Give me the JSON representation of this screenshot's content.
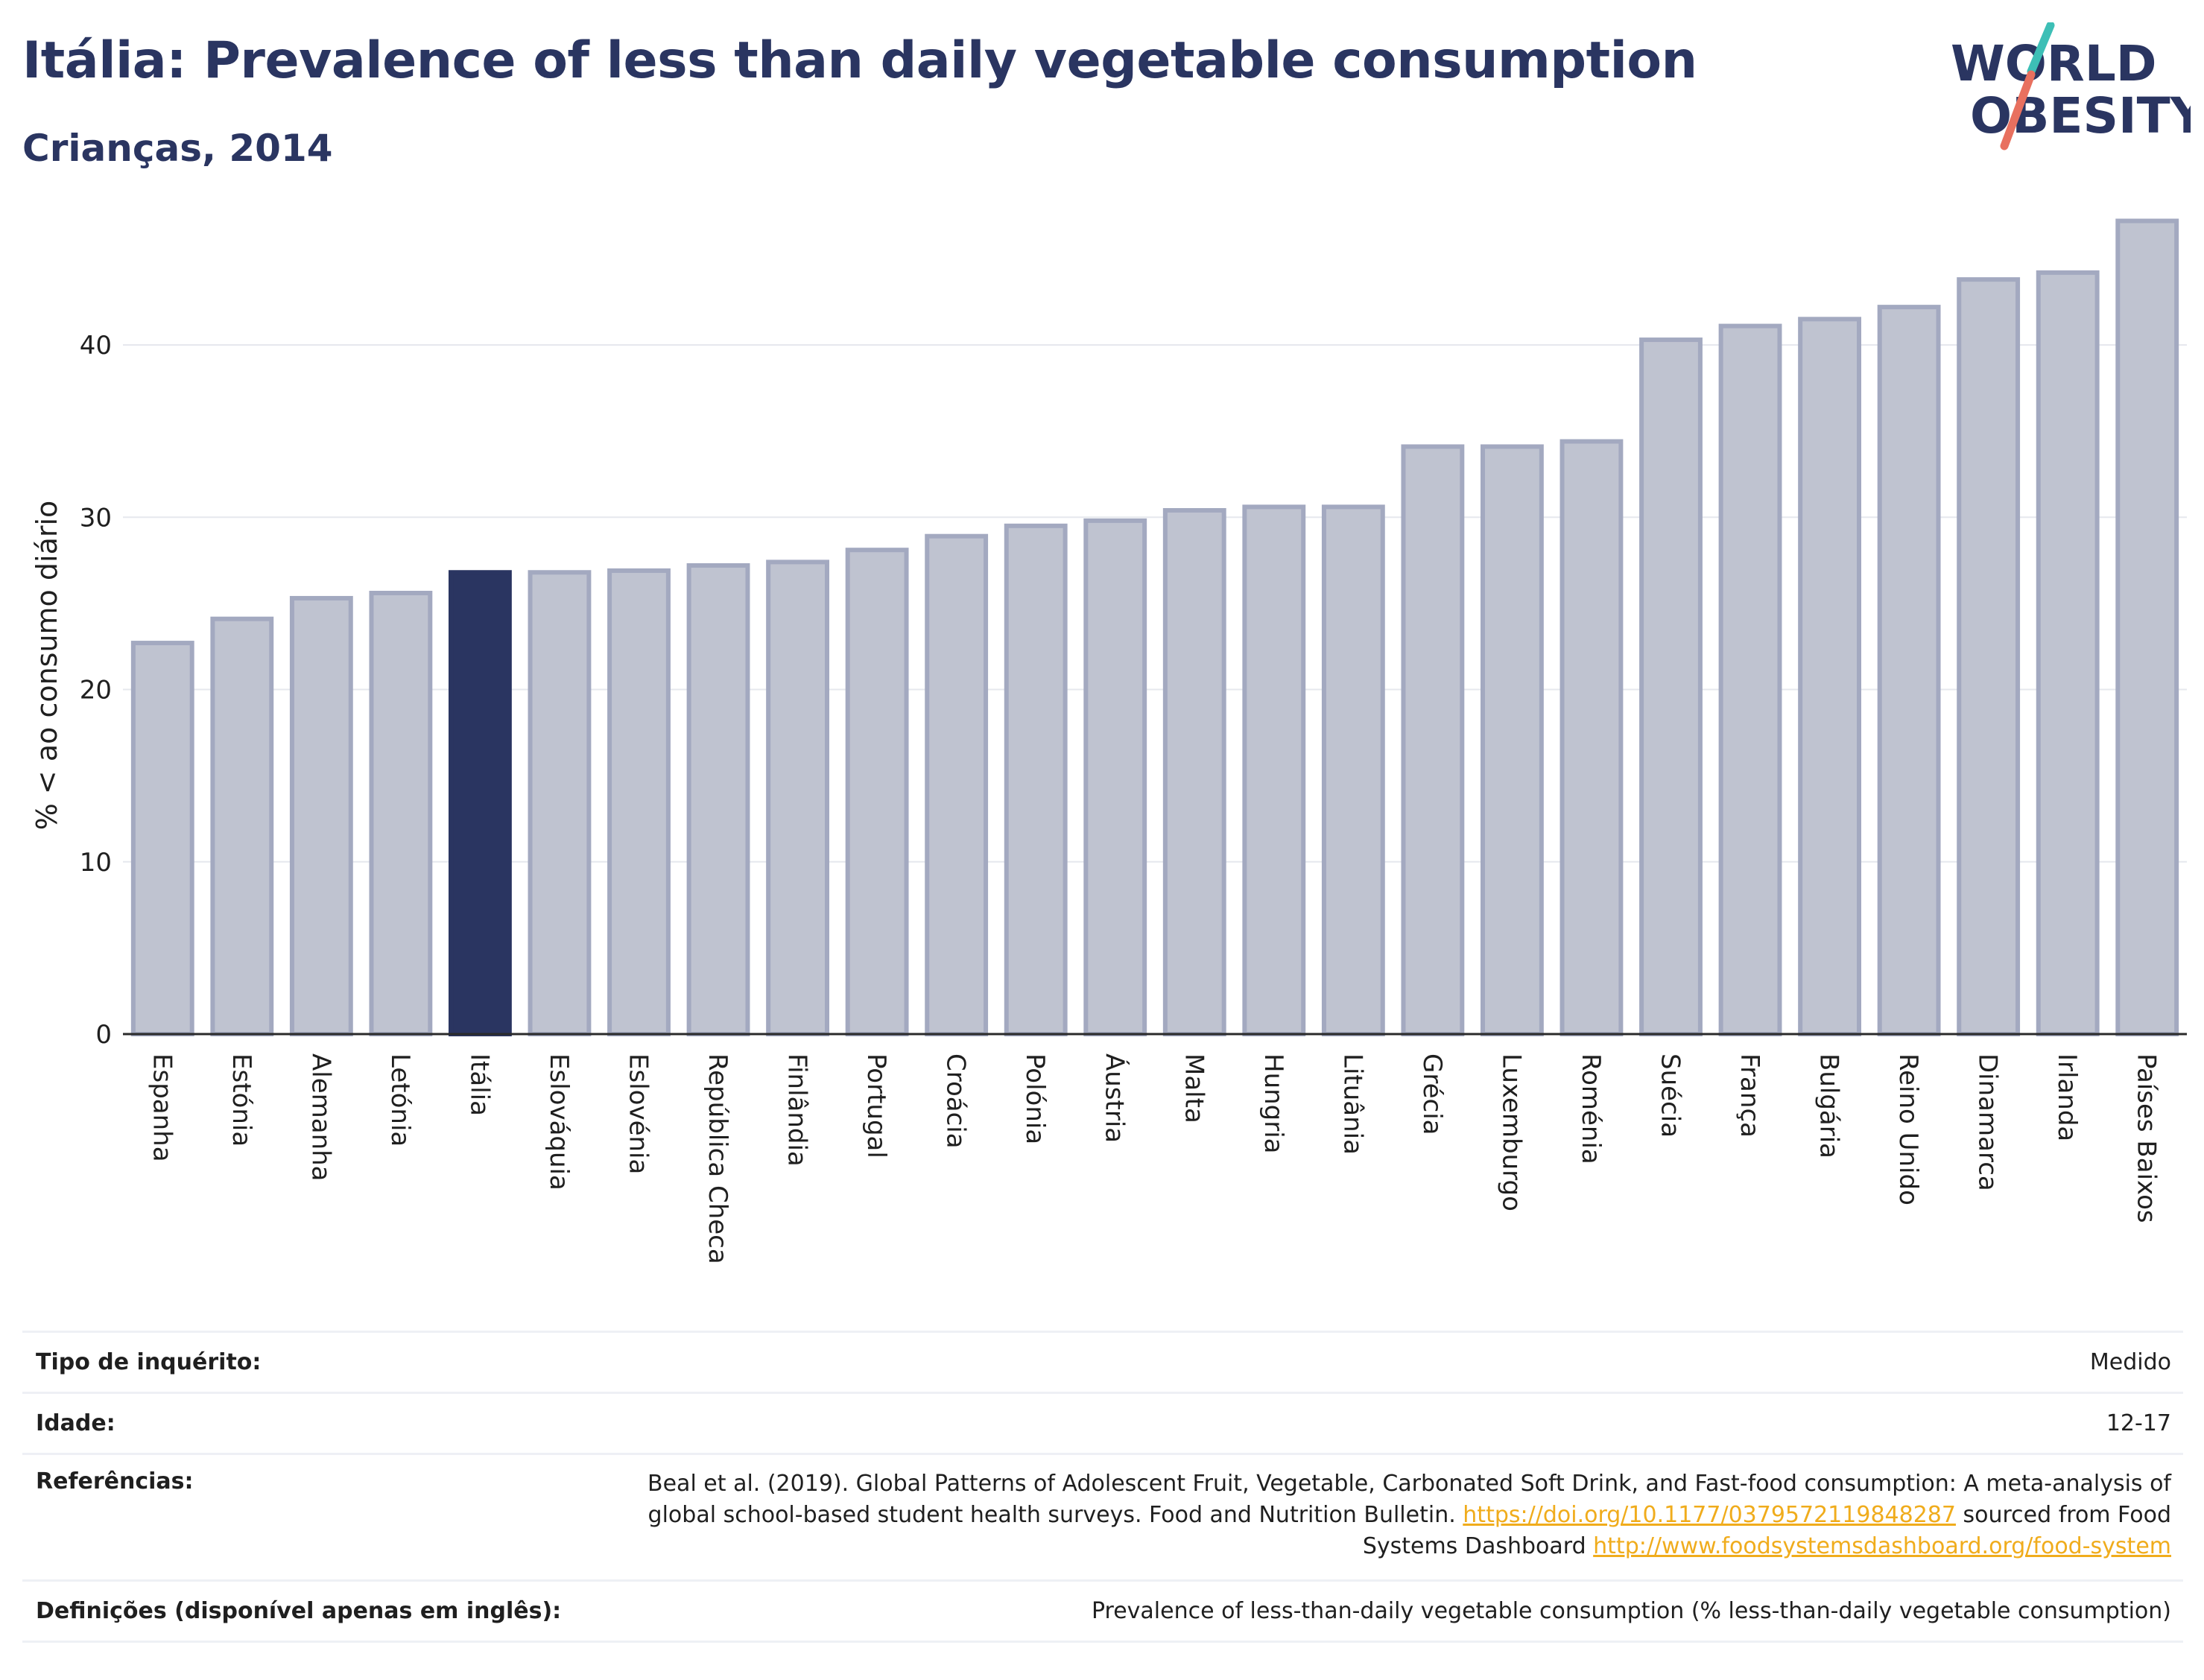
{
  "header": {
    "title": "Itália: Prevalence of less than daily vegetable consumption",
    "subtitle": "Crianças, 2014"
  },
  "logo": {
    "line1": "WORLD",
    "line2": "OBESITY"
  },
  "colors": {
    "highlight": "#2a3561",
    "bar_fill": "#bfc3d0",
    "bar_stroke": "#a3a9c0",
    "logo_text": "#2a3561",
    "logo_teal": "#3dbfb6",
    "logo_coral": "#e8705f",
    "link": "#f0ac1c"
  },
  "chart_data": {
    "type": "bar",
    "title": "",
    "xlabel": "",
    "ylabel": "% < ao consumo diário",
    "ylim": [
      0,
      48
    ],
    "yticks": [
      0,
      10,
      20,
      30,
      40
    ],
    "grid": true,
    "highlight_category": "Itália",
    "categories": [
      "Espanha",
      "Estónia",
      "Alemanha",
      "Letónia",
      "Itália",
      "Eslováquia",
      "Eslovénia",
      "República Checa",
      "Finlândia",
      "Portugal",
      "Croácia",
      "Polónia",
      "Áustria",
      "Malta",
      "Hungria",
      "Lituânia",
      "Grécia",
      "Luxemburgo",
      "Roménia",
      "Suécia",
      "França",
      "Bulgária",
      "Reino Unido",
      "Dinamarca",
      "Irlanda",
      "Países Baixos"
    ],
    "values": [
      22.7,
      24.1,
      25.3,
      25.6,
      26.8,
      26.8,
      26.9,
      27.2,
      27.4,
      28.1,
      28.9,
      29.5,
      29.8,
      30.4,
      30.6,
      30.6,
      34.1,
      34.1,
      34.4,
      40.3,
      41.1,
      41.5,
      42.2,
      43.8,
      44.2,
      47.2
    ]
  },
  "info": [
    {
      "key": "Tipo de inquérito:",
      "value": "Medido"
    },
    {
      "key": "Idade:",
      "value": "12-17"
    },
    {
      "key": "Referências:",
      "value_text": "Beal et al. (2019). Global Patterns of Adolescent Fruit, Vegetable, Carbonated Soft Drink, and Fast-food consumption: A meta-analysis of global school-based student health surveys. Food and Nutrition Bulletin. ",
      "link1": "https://doi.org/10.1177/0379572119848287",
      "mid_text": " sourced from Food Systems Dashboard ",
      "link2": "http://www.foodsystemsdashboard.org/food-system"
    },
    {
      "key": "Definições (disponível apenas em inglês):",
      "value": "Prevalence of less-than-daily vegetable consumption (% less-than-daily vegetable consumption)"
    }
  ]
}
